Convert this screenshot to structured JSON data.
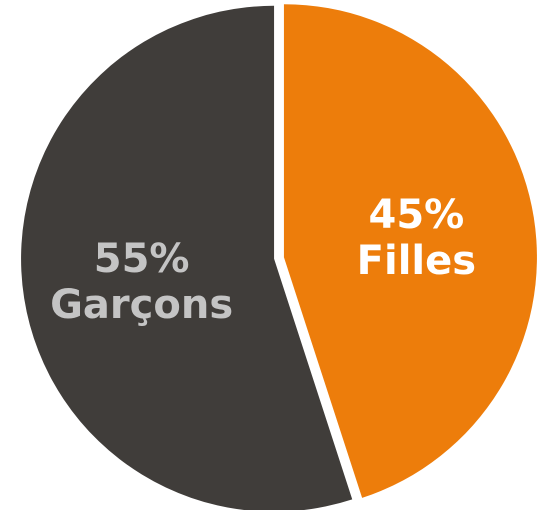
{
  "chart_data": {
    "type": "pie",
    "slices": [
      {
        "name": "Filles",
        "value": 45,
        "percent_label": "45%",
        "category_label": "Filles",
        "color": "#ED7D0B",
        "label_color": "#FFFFFF"
      },
      {
        "name": "Garçons",
        "value": 55,
        "percent_label": "55%",
        "category_label": "Garçons",
        "color": "#403D3A",
        "label_color": "#C4C4C4"
      }
    ]
  }
}
